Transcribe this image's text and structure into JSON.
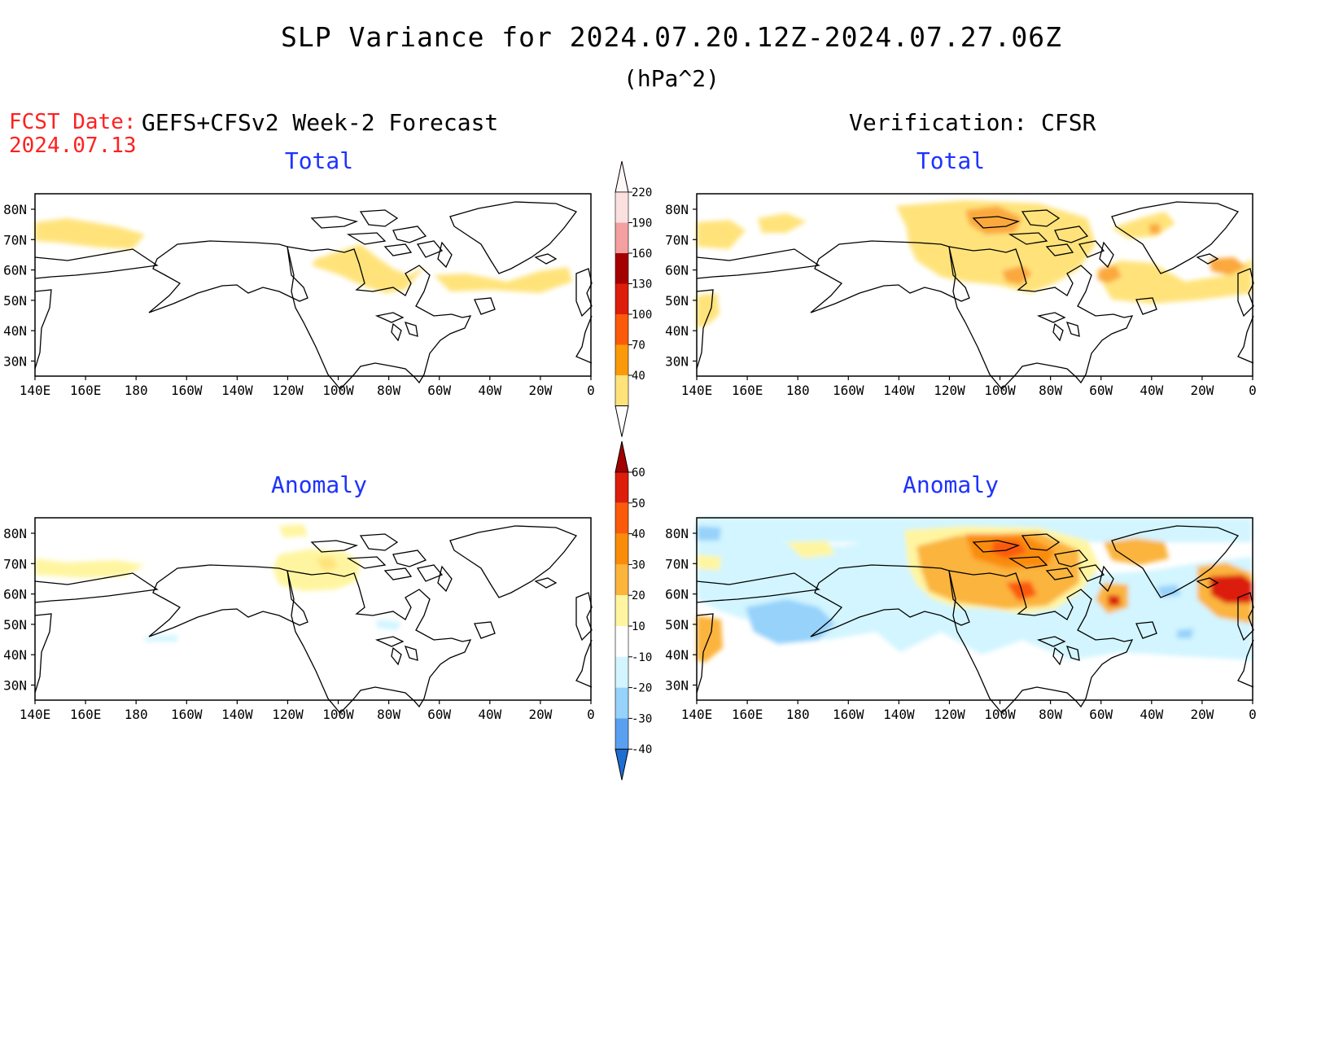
{
  "title": "SLP Variance for 2024.07.20.12Z-2024.07.27.06Z",
  "units": "(hPa^2)",
  "fcst_date_label": "FCST Date:",
  "fcst_date": "2024.07.13",
  "left_header": "GEFS+CFSv2 Week-2 Forecast",
  "right_header": "Verification: CFSR",
  "panels": {
    "top_left": "Total",
    "top_right": "Total",
    "bottom_left": "Anomaly",
    "bottom_right": "Anomaly"
  },
  "lat_labels": [
    "80N",
    "70N",
    "60N",
    "50N",
    "40N",
    "30N"
  ],
  "lon_labels": [
    "140E",
    "160E",
    "180",
    "160W",
    "140W",
    "120W",
    "100W",
    "80W",
    "60W",
    "40W",
    "20W",
    "0"
  ],
  "colorbar_total": {
    "levels": [
      "220",
      "190",
      "160",
      "130",
      "100",
      "70",
      "40"
    ],
    "colors": [
      "#fbe0e0",
      "#f4a0a0",
      "#a50000",
      "#dc1e0a",
      "#fa5a0a",
      "#fa9a0a",
      "#ffe37a"
    ]
  },
  "colorbar_anom": {
    "levels": [
      "60",
      "50",
      "40",
      "30",
      "20",
      "10",
      "-10",
      "-20",
      "-30",
      "-40"
    ],
    "colors": [
      "#a50000",
      "#dc1e0a",
      "#fa5a0a",
      "#fa8c0a",
      "#fbb43c",
      "#fff5a0",
      "#ffffff",
      "#d2f5ff",
      "#96d2fa",
      "#5aa0f0",
      "#1e6ed2"
    ]
  }
}
